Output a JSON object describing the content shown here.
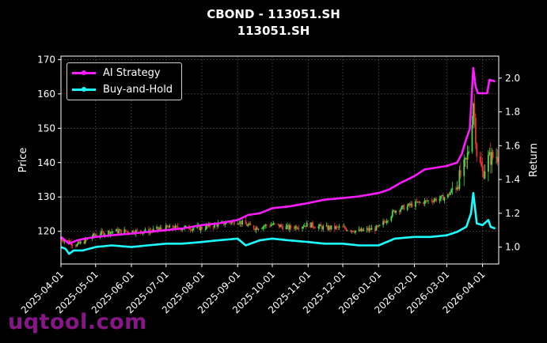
{
  "title_line1": "CBOND - 113051.SH",
  "title_line2": "113051.SH",
  "watermark": "uqtool.com",
  "colors": {
    "background": "#000000",
    "ai": "#ff1aff",
    "bh": "#1affff",
    "up": "#44dd44",
    "down": "#ee3333",
    "grid": "#555555"
  },
  "chart_data": {
    "type": "line",
    "xlabel": "",
    "ylabel_left": "Price",
    "ylabel_right": "Return",
    "x_ticks": [
      "2025-04-01",
      "2025-05-01",
      "2025-06-01",
      "2025-07-01",
      "2025-08-01",
      "2025-09-01",
      "2025-10-01",
      "2025-11-01",
      "2025-12-01",
      "2026-01-01",
      "2026-02-01",
      "2026-03-01",
      "2026-04-01"
    ],
    "x_range": [
      "2025-04-01",
      "2026-04-15"
    ],
    "y_left_ticks": [
      120,
      130,
      140,
      150,
      160,
      170
    ],
    "y_left_range": [
      110.5,
      171
    ],
    "y_right_ticks": [
      1.0,
      1.2,
      1.4,
      1.6,
      1.8,
      2.0
    ],
    "y_right_range": [
      0.9,
      2.13
    ],
    "grid": true,
    "legend_position": "top-left",
    "series": [
      {
        "name": "AI Strategy",
        "axis": "right",
        "points": [
          [
            "2025-04-01",
            1.06
          ],
          [
            "2025-04-08",
            1.02
          ],
          [
            "2025-04-15",
            1.04
          ],
          [
            "2025-04-22",
            1.05
          ],
          [
            "2025-05-01",
            1.06
          ],
          [
            "2025-05-15",
            1.07
          ],
          [
            "2025-06-01",
            1.08
          ],
          [
            "2025-06-15",
            1.09
          ],
          [
            "2025-07-01",
            1.1
          ],
          [
            "2025-07-15",
            1.11
          ],
          [
            "2025-08-01",
            1.13
          ],
          [
            "2025-08-15",
            1.14
          ],
          [
            "2025-09-01",
            1.16
          ],
          [
            "2025-09-10",
            1.19
          ],
          [
            "2025-09-20",
            1.2
          ],
          [
            "2025-10-01",
            1.23
          ],
          [
            "2025-10-15",
            1.24
          ],
          [
            "2025-11-01",
            1.26
          ],
          [
            "2025-11-15",
            1.28
          ],
          [
            "2025-12-01",
            1.29
          ],
          [
            "2025-12-15",
            1.3
          ],
          [
            "2026-01-01",
            1.32
          ],
          [
            "2026-01-10",
            1.34
          ],
          [
            "2026-01-20",
            1.38
          ],
          [
            "2026-02-01",
            1.42
          ],
          [
            "2026-02-10",
            1.46
          ],
          [
            "2026-02-20",
            1.47
          ],
          [
            "2026-03-01",
            1.48
          ],
          [
            "2026-03-10",
            1.5
          ],
          [
            "2026-03-14",
            1.55
          ],
          [
            "2026-03-17",
            1.62
          ],
          [
            "2026-03-21",
            1.7
          ],
          [
            "2026-03-24",
            2.06
          ],
          [
            "2026-03-26",
            1.95
          ],
          [
            "2026-03-28",
            1.91
          ],
          [
            "2026-04-05",
            1.91
          ],
          [
            "2026-04-07",
            1.99
          ],
          [
            "2026-04-12",
            1.98
          ]
        ]
      },
      {
        "name": "Buy-and-Hold",
        "axis": "right",
        "points": [
          [
            "2025-04-01",
            1.0
          ],
          [
            "2025-04-05",
            0.99
          ],
          [
            "2025-04-08",
            0.96
          ],
          [
            "2025-04-12",
            0.98
          ],
          [
            "2025-04-20",
            0.98
          ],
          [
            "2025-05-01",
            1.0
          ],
          [
            "2025-05-15",
            1.01
          ],
          [
            "2025-06-01",
            1.0
          ],
          [
            "2025-06-15",
            1.01
          ],
          [
            "2025-07-01",
            1.02
          ],
          [
            "2025-07-15",
            1.02
          ],
          [
            "2025-08-01",
            1.03
          ],
          [
            "2025-08-15",
            1.04
          ],
          [
            "2025-09-01",
            1.05
          ],
          [
            "2025-09-08",
            1.01
          ],
          [
            "2025-09-20",
            1.04
          ],
          [
            "2025-10-01",
            1.05
          ],
          [
            "2025-10-15",
            1.04
          ],
          [
            "2025-11-01",
            1.03
          ],
          [
            "2025-11-15",
            1.02
          ],
          [
            "2025-12-01",
            1.02
          ],
          [
            "2025-12-15",
            1.01
          ],
          [
            "2026-01-01",
            1.01
          ],
          [
            "2026-01-15",
            1.05
          ],
          [
            "2026-02-01",
            1.06
          ],
          [
            "2026-02-15",
            1.06
          ],
          [
            "2026-03-01",
            1.07
          ],
          [
            "2026-03-10",
            1.09
          ],
          [
            "2026-03-18",
            1.12
          ],
          [
            "2026-03-22",
            1.2
          ],
          [
            "2026-03-24",
            1.32
          ],
          [
            "2026-03-27",
            1.14
          ],
          [
            "2026-04-01",
            1.13
          ],
          [
            "2026-04-06",
            1.16
          ],
          [
            "2026-04-08",
            1.12
          ],
          [
            "2026-04-12",
            1.11
          ]
        ]
      },
      {
        "name": "",
        "type": "candlestick",
        "axis": "left",
        "points": [
          [
            "2025-04-01",
            118
          ],
          [
            "2025-04-15",
            116
          ],
          [
            "2025-05-01",
            119
          ],
          [
            "2025-05-15",
            120
          ],
          [
            "2025-06-01",
            120
          ],
          [
            "2025-06-15",
            120
          ],
          [
            "2025-07-01",
            121
          ],
          [
            "2025-07-15",
            121
          ],
          [
            "2025-08-01",
            121
          ],
          [
            "2025-08-15",
            122
          ],
          [
            "2025-09-01",
            123
          ],
          [
            "2025-09-15",
            121
          ],
          [
            "2025-10-01",
            122
          ],
          [
            "2025-10-15",
            121
          ],
          [
            "2025-11-01",
            122
          ],
          [
            "2025-11-15",
            121
          ],
          [
            "2025-12-01",
            121
          ],
          [
            "2025-12-15",
            120
          ],
          [
            "2026-01-01",
            121
          ],
          [
            "2026-01-15",
            126
          ],
          [
            "2026-02-01",
            128
          ],
          [
            "2026-02-15",
            129
          ],
          [
            "2026-03-01",
            130
          ],
          [
            "2026-03-10",
            134
          ],
          [
            "2026-03-18",
            140
          ],
          [
            "2026-03-22",
            148
          ],
          [
            "2026-03-24",
            158
          ],
          [
            "2026-03-27",
            143
          ],
          [
            "2026-04-01",
            137
          ],
          [
            "2026-04-06",
            141
          ],
          [
            "2026-04-12",
            142
          ]
        ]
      }
    ]
  }
}
